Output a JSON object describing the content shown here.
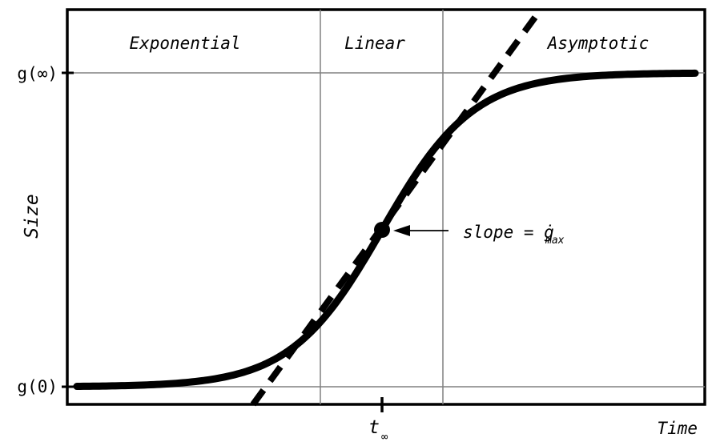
{
  "regions": [
    "Exponential",
    "Linear",
    "Asymptotic"
  ],
  "y_axis": {
    "label": "Size",
    "tick_top": "g(∞)",
    "tick_bottom": "g(0)"
  },
  "x_axis": {
    "label": "Time",
    "tick_main": "t",
    "tick_sub": "∞"
  },
  "annotation": {
    "main": "slope = ",
    "symbol": "ġ",
    "sub": "max"
  },
  "colors": {
    "curve": "#000000",
    "grid": "#808080",
    "frame": "#000000"
  }
}
